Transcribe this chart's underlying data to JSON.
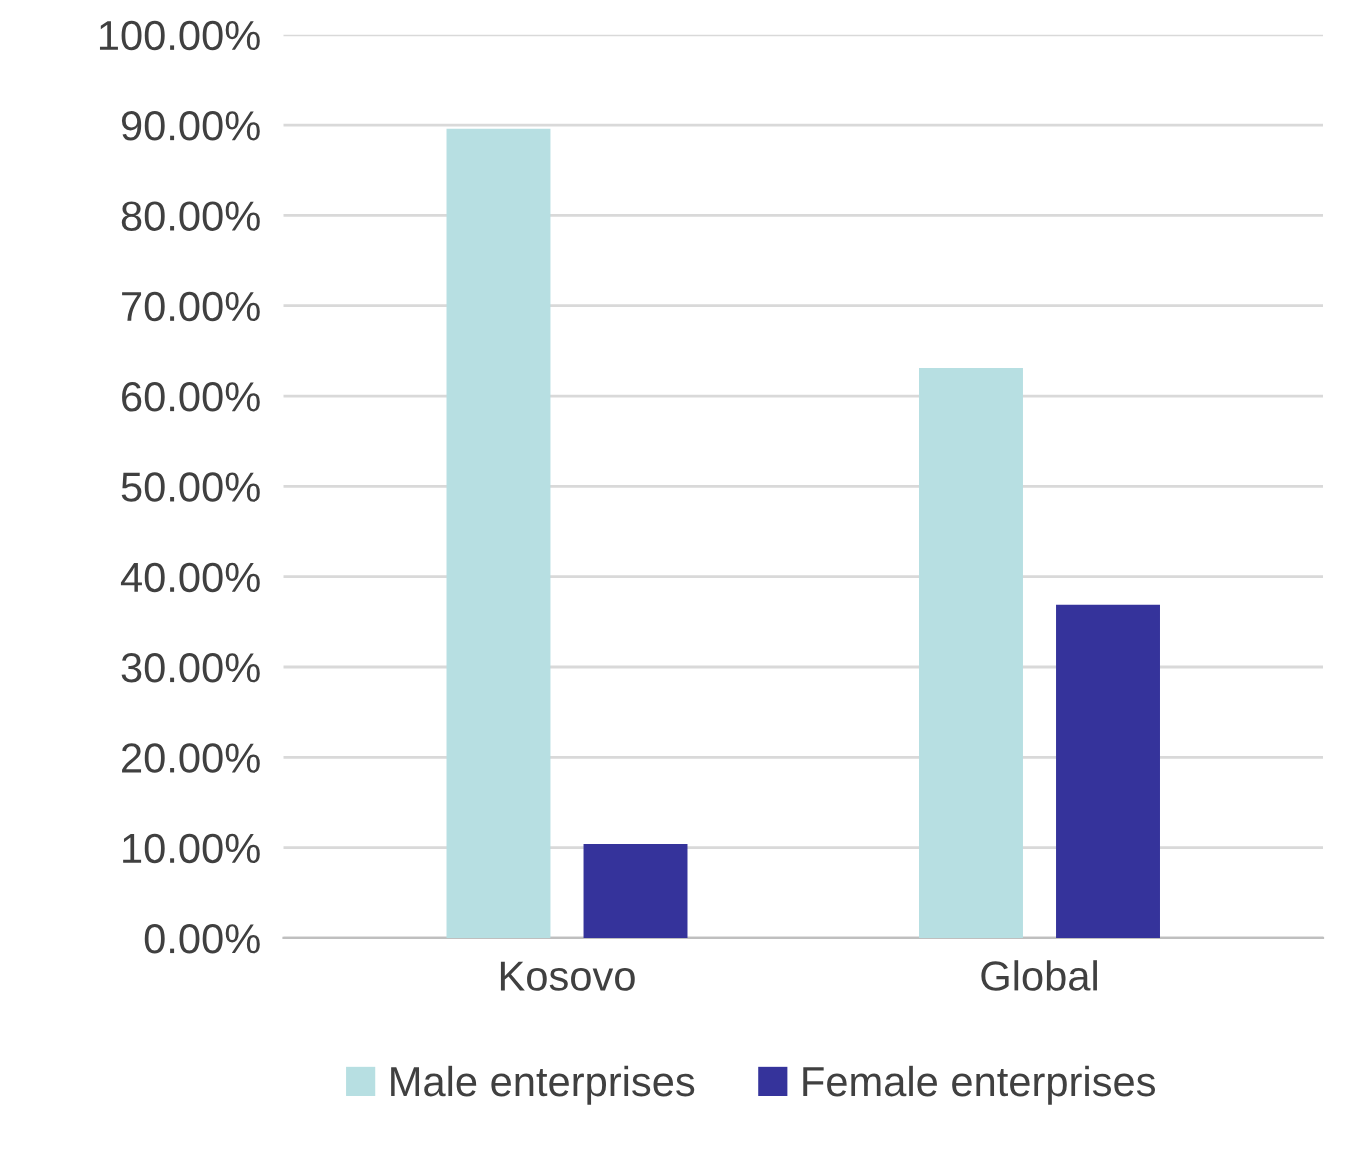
{
  "chart_data": {
    "type": "bar",
    "categories": [
      "Kosovo",
      "Global"
    ],
    "series": [
      {
        "name": "Male enterprises",
        "color": "#b7dfe2",
        "values": [
          89.6,
          63.1
        ]
      },
      {
        "name": "Female enterprises",
        "color": "#35339b",
        "values": [
          10.4,
          36.9
        ]
      }
    ],
    "ylim": [
      0,
      100
    ],
    "yticks": [
      {
        "value": 0,
        "label": "0.00%"
      },
      {
        "value": 10,
        "label": "10.00%"
      },
      {
        "value": 20,
        "label": "20.00%"
      },
      {
        "value": 30,
        "label": "30.00%"
      },
      {
        "value": 40,
        "label": "40.00%"
      },
      {
        "value": 50,
        "label": "50.00%"
      },
      {
        "value": 60,
        "label": "60.00%"
      },
      {
        "value": 70,
        "label": "70.00%"
      },
      {
        "value": 80,
        "label": "80.00%"
      },
      {
        "value": 90,
        "label": "90.00%"
      },
      {
        "value": 100,
        "label": "100.00%"
      }
    ],
    "grid": "y",
    "legend": "bottom"
  }
}
